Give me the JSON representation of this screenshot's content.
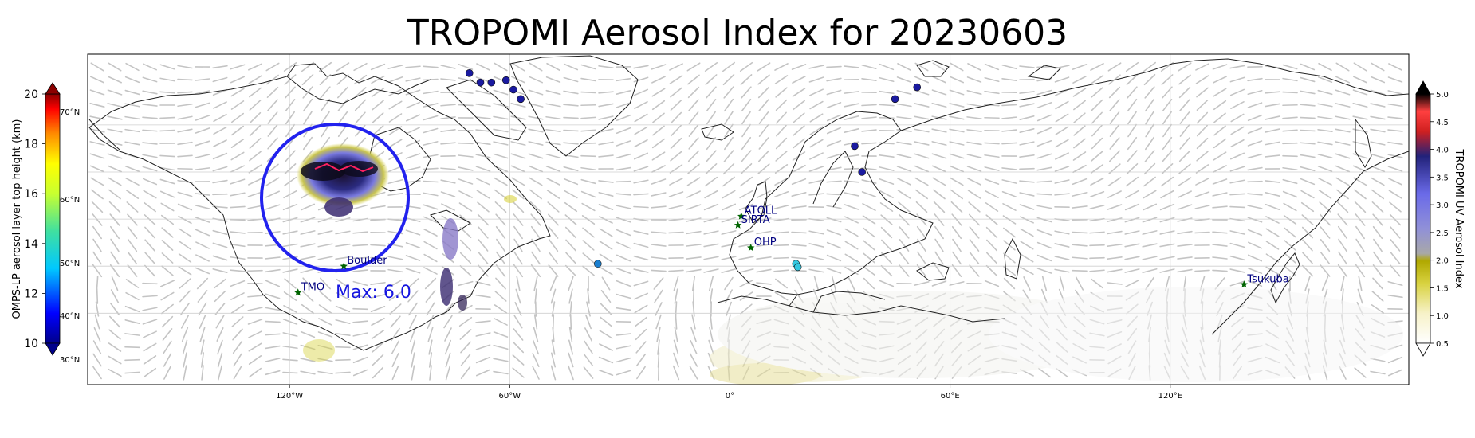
{
  "title": "TROPOMI Aerosol Index for 20230603",
  "map": {
    "lon_ticks": [
      {
        "lon": -120,
        "label": "120°W"
      },
      {
        "lon": -60,
        "label": "60°W"
      },
      {
        "lon": 0,
        "label": "0°"
      },
      {
        "lon": 60,
        "label": "60°E"
      },
      {
        "lon": 120,
        "label": "120°E"
      }
    ],
    "lat_labels": [
      "70°N",
      "60°N",
      "50°N",
      "40°N",
      "30°N"
    ],
    "max_label": "Max: 6.0",
    "stations": [
      {
        "name": "TMO",
        "lon": -117.7,
        "lat": 34.4
      },
      {
        "name": "Boulder",
        "lon": -105.2,
        "lat": 40.0
      },
      {
        "name": "ATOLL",
        "lon": 3.1,
        "lat": 50.6
      },
      {
        "name": "SIRTA",
        "lon": 2.2,
        "lat": 48.7
      },
      {
        "name": "OHP",
        "lon": 5.7,
        "lat": 43.9
      },
      {
        "name": "Tsukuba",
        "lon": 140.1,
        "lat": 36.1
      }
    ],
    "omps_points": [
      {
        "lon": -71,
        "lat": 81,
        "color": "#1a1aa0"
      },
      {
        "lon": -68,
        "lat": 79,
        "color": "#1a1aa0"
      },
      {
        "lon": -65,
        "lat": 79,
        "color": "#1a1aa0"
      },
      {
        "lon": -61,
        "lat": 79.5,
        "color": "#1a1aa0"
      },
      {
        "lon": -59,
        "lat": 77.5,
        "color": "#1a1aa0"
      },
      {
        "lon": -57,
        "lat": 75.5,
        "color": "#1a1aa0"
      },
      {
        "lon": 45,
        "lat": 75.5,
        "color": "#1a1aa0"
      },
      {
        "lon": 51,
        "lat": 78,
        "color": "#1a1aa0"
      },
      {
        "lon": 34,
        "lat": 65.5,
        "color": "#1a1aa0"
      },
      {
        "lon": 36,
        "lat": 60,
        "color": "#1a1aa0"
      },
      {
        "lon": -36,
        "lat": 40.5,
        "color": "#1a7fd0"
      },
      {
        "lon": 18,
        "lat": 40.5,
        "color": "#35c8e0"
      },
      {
        "lon": 18.5,
        "lat": 39.8,
        "color": "#35c8e0"
      }
    ]
  },
  "left_colorbar": {
    "label": "OMPS-LP aerosol layer top height (km)",
    "ticks": [
      "20",
      "18",
      "16",
      "14",
      "12",
      "10"
    ]
  },
  "right_colorbar": {
    "label": "TROPOMI UV Aerosol Index",
    "ticks": [
      "5.0",
      "4.5",
      "4.0",
      "3.5",
      "3.0",
      "2.5",
      "2.0",
      "1.5",
      "1.0",
      "0.5"
    ]
  },
  "colors": {
    "circle": "#2222ee",
    "max_text": "#1515e0",
    "station_star": "#006400",
    "station_text": "#000080"
  }
}
